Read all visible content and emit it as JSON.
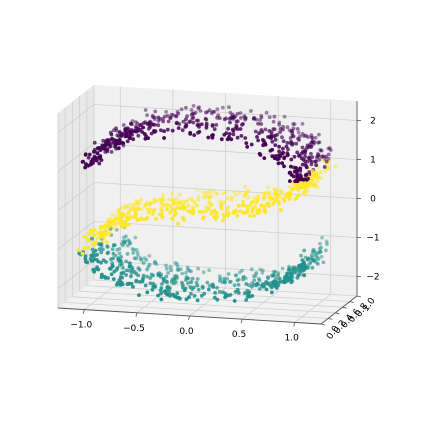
{
  "chart_data": {
    "type": "scatter",
    "subtype": "3d-scatter",
    "title": "",
    "xlabel": "",
    "ylabel": "",
    "zlabel": "",
    "xlim": [
      -1.25,
      1.25
    ],
    "ylim": [
      0.0,
      1.0
    ],
    "zlim": [
      -2.5,
      2.5
    ],
    "x_ticks": [
      "−1.0",
      "−0.5",
      "0.0",
      "0.5",
      "1.0"
    ],
    "y_ticks": [
      "0.0",
      "0.2",
      "0.4",
      "0.6",
      "0.8",
      "1.0"
    ],
    "z_ticks": [
      "−2",
      "−1",
      "0",
      "1",
      "2"
    ],
    "grid": true,
    "legend": "none",
    "point_count": 1500,
    "colormap": "viridis",
    "series": [
      {
        "cluster": "top",
        "color": "#21918c",
        "z_range": [
          0.6,
          2.1
        ],
        "shape": "upper arc of S-curve"
      },
      {
        "cluster": "middle",
        "color": "#fde725",
        "z_range": [
          -0.7,
          0.6
        ],
        "shape": "central diagonal band of S-curve"
      },
      {
        "cluster": "bottom",
        "color": "#440154",
        "z_range": [
          -2.3,
          -0.7
        ],
        "shape": "lower arc of S-curve"
      }
    ]
  },
  "colors": {
    "pane_back": "#f0f0f0",
    "pane_side": "#e8e8e8",
    "pane_floor": "#f2f2f2",
    "grid": "#d0d0d0",
    "axis": "#555555"
  }
}
